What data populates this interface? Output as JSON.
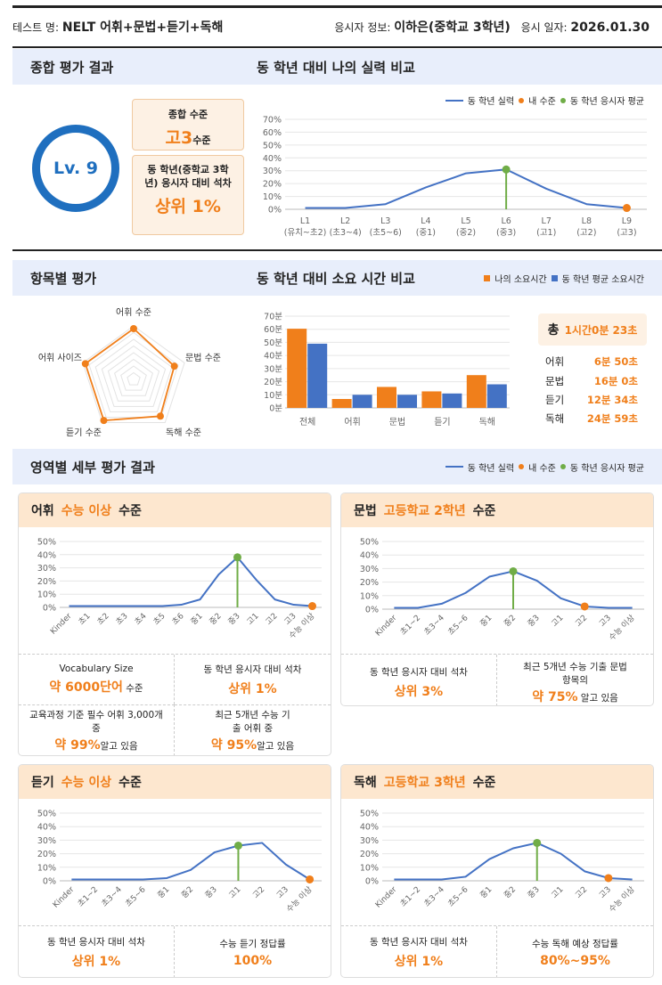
{
  "header": {
    "test_label": "테스트 명:",
    "test_name": "NELT 어휘+문법+듣기+독해",
    "examinee_label": "응시자 정보:",
    "examinee": "이하은(중학교 3학년)",
    "date_label": "응시 일자:",
    "date": "2026.01.30"
  },
  "overall": {
    "section_title": "종합 평가 결과",
    "level_badge": "Lv. 9",
    "level_box_title": "종합 수준",
    "level_value": "고3",
    "level_suffix": "수준",
    "rank_box_title": "동 학년(중학교 3학년) 응시자 대비 석차",
    "rank_value": "상위 1%"
  },
  "compare": {
    "section_title": "동 학년 대비 나의 실력 비교",
    "legend": {
      "line": "동 학년 실력",
      "mine": "내 수준",
      "avg": "동 학년 응시자 평균"
    }
  },
  "items": {
    "section_title": "항목별 평가",
    "radar_labels": [
      "어휘 수준",
      "문법 수준",
      "독해 수준",
      "듣기 수준",
      "어휘 사이즈"
    ]
  },
  "time": {
    "section_title": "동 학년 대비 소요 시간 비교",
    "legend_mine": "나의 소요시간",
    "legend_avg": "동 학년 평균 소요시간",
    "total_label": "총",
    "total_value": "1시간0분 23초",
    "rows": [
      {
        "label": "어휘",
        "value": "6분 50초"
      },
      {
        "label": "문법",
        "value": "16분 0초"
      },
      {
        "label": "듣기",
        "value": "12분 34초"
      },
      {
        "label": "독해",
        "value": "24분 59초"
      }
    ]
  },
  "detail": {
    "section_title": "영역별 세부 평가 결과",
    "legend": {
      "line": "동 학년 실력",
      "mine": "내 수준",
      "avg": "동 학년 응시자 평균"
    },
    "cards": [
      {
        "area": "어휘",
        "level": "수능 이상",
        "suffix": "수준",
        "stats": [
          {
            "label": "Vocabulary Size",
            "value": "약 6000단어",
            "tail": " 수준"
          },
          {
            "label": "동 학년 응시자 대비 석차",
            "value": "상위 1%",
            "tail": ""
          },
          {
            "label": "교육과정 기준 필수 어휘 3,000개 중",
            "value": "약 99%",
            "tail": "알고 있음"
          },
          {
            "label": "최근 5개년 수능 기출 어휘 중",
            "value": "약 95%",
            "tail": "알고 있음"
          }
        ]
      },
      {
        "area": "문법",
        "level": "고등학교 2학년",
        "suffix": "수준",
        "stats": [
          {
            "label": "동 학년 응시자 대비 석차",
            "value": "상위 3%",
            "tail": ""
          },
          {
            "label": "최근 5개년 수능 기출 문법 항목의",
            "value": "약 75%",
            "tail": " 알고 있음"
          }
        ]
      },
      {
        "area": "듣기",
        "level": "수능 이상",
        "suffix": "수준",
        "stats": [
          {
            "label": "동 학년 응시자 대비 석차",
            "value": "상위 1%",
            "tail": ""
          },
          {
            "label": "수능 듣기 정답률",
            "value": "100%",
            "tail": ""
          }
        ]
      },
      {
        "area": "독해",
        "level": "고등학교 3학년",
        "suffix": "수준",
        "stats": [
          {
            "label": "동 학년 응시자 대비 석차",
            "value": "상위 1%",
            "tail": ""
          },
          {
            "label": "수능 독해 예상 정답률",
            "value": "80%~95%",
            "tail": ""
          }
        ]
      }
    ]
  },
  "colors": {
    "orange": "#f07f1b",
    "blue": "#4472c4",
    "green": "#70ad47",
    "navy": "#1f6fbf"
  },
  "chart_data": [
    {
      "id": "overall",
      "type": "line",
      "title": "동 학년 대비 나의 실력 비교",
      "categories": [
        "L1\n(유치~초2)",
        "L2\n(초3~4)",
        "L3\n(초5~6)",
        "L4\n(중1)",
        "L5\n(중2)",
        "L6\n(중3)",
        "L7\n(고1)",
        "L8\n(고2)",
        "L9\n(고3)"
      ],
      "series": [
        {
          "name": "동 학년 실력",
          "values": [
            1,
            1,
            4,
            17,
            28,
            31,
            16,
            4,
            1
          ]
        }
      ],
      "avg_index": 5,
      "mine_index": 8,
      "ylim": [
        0,
        70
      ],
      "yticks": [
        0,
        10,
        20,
        30,
        40,
        50,
        60,
        70
      ],
      "ysuffix": "%",
      "legend": "top-right",
      "grid": true
    },
    {
      "id": "radar",
      "type": "radar",
      "categories": [
        "어휘 수준",
        "문법 수준",
        "독해 수준",
        "듣기 수준",
        "어휘 사이즈"
      ],
      "values": [
        95,
        80,
        85,
        95,
        95
      ],
      "max": 100
    },
    {
      "id": "time",
      "type": "bar",
      "categories": [
        "전체",
        "어휘",
        "문법",
        "듣기",
        "독해"
      ],
      "series": [
        {
          "name": "나의 소요시간",
          "values": [
            60.4,
            6.8,
            16,
            12.6,
            25
          ]
        },
        {
          "name": "동 학년 평균 소요시간",
          "values": [
            49,
            10,
            10,
            11,
            18
          ]
        }
      ],
      "ylim": [
        0,
        70
      ],
      "yticks": [
        0,
        10,
        20,
        30,
        40,
        50,
        60,
        70
      ],
      "ysuffix": "분",
      "legend": "top-right",
      "grid": true
    },
    {
      "id": "vocab",
      "type": "line",
      "categories": [
        "Kinder",
        "초1",
        "초2",
        "초3",
        "초4",
        "초5",
        "초6",
        "중1",
        "중2",
        "중3",
        "고1",
        "고2",
        "고3",
        "수능 이상"
      ],
      "series": [
        {
          "name": "동 학년 실력",
          "values": [
            1,
            1,
            1,
            1,
            1,
            1,
            2,
            6,
            25,
            38,
            21,
            6,
            2,
            1
          ]
        }
      ],
      "avg_index": 9,
      "mine_index": 13,
      "ylim": [
        0,
        50
      ],
      "yticks": [
        0,
        10,
        20,
        30,
        40,
        50
      ],
      "ysuffix": "%"
    },
    {
      "id": "grammar",
      "type": "line",
      "categories": [
        "Kinder",
        "초1~2",
        "초3~4",
        "초5~6",
        "중1",
        "중2",
        "중3",
        "고1",
        "고2",
        "고3",
        "수능 이상"
      ],
      "series": [
        {
          "name": "동 학년 실력",
          "values": [
            1,
            1,
            4,
            12,
            24,
            28,
            21,
            8,
            2,
            1,
            1
          ]
        }
      ],
      "avg_index": 5,
      "mine_index": 8,
      "ylim": [
        0,
        50
      ],
      "yticks": [
        0,
        10,
        20,
        30,
        40,
        50
      ],
      "ysuffix": "%"
    },
    {
      "id": "listening",
      "type": "line",
      "categories": [
        "Kinder",
        "초1~2",
        "초3~4",
        "초5~6",
        "중1",
        "중2",
        "중3",
        "고1",
        "고2",
        "고3",
        "수능 이상"
      ],
      "series": [
        {
          "name": "동 학년 실력",
          "values": [
            1,
            1,
            1,
            1,
            2,
            8,
            21,
            26,
            28,
            12,
            1
          ]
        }
      ],
      "avg_index": 7,
      "mine_index": 10,
      "ylim": [
        0,
        50
      ],
      "yticks": [
        0,
        10,
        20,
        30,
        40,
        50
      ],
      "ysuffix": "%"
    },
    {
      "id": "reading",
      "type": "line",
      "categories": [
        "Kinder",
        "초1~2",
        "초3~4",
        "초5~6",
        "중1",
        "중2",
        "중3",
        "고1",
        "고2",
        "고3",
        "수능 이상"
      ],
      "series": [
        {
          "name": "동 학년 실력",
          "values": [
            1,
            1,
            1,
            3,
            16,
            24,
            28,
            20,
            7,
            2,
            1
          ]
        }
      ],
      "avg_index": 6,
      "mine_index": 9,
      "ylim": [
        0,
        50
      ],
      "yticks": [
        0,
        10,
        20,
        30,
        40,
        50
      ],
      "ysuffix": "%"
    }
  ]
}
